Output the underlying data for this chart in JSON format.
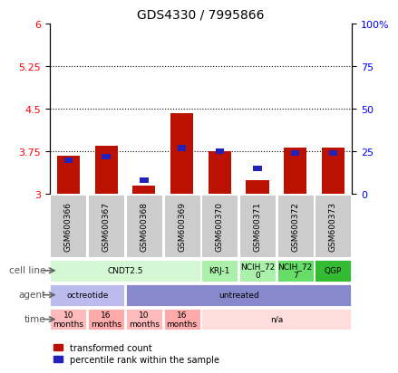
{
  "title": "GDS4330 / 7995866",
  "samples": [
    "GSM600366",
    "GSM600367",
    "GSM600368",
    "GSM600369",
    "GSM600370",
    "GSM600371",
    "GSM600372",
    "GSM600373"
  ],
  "red_values": [
    3.67,
    3.85,
    3.15,
    4.43,
    3.75,
    3.25,
    3.82,
    3.82
  ],
  "blue_values": [
    20,
    22,
    8,
    27,
    25,
    15,
    24,
    24
  ],
  "ylim_left": [
    3.0,
    6.0
  ],
  "ylim_right": [
    0,
    100
  ],
  "yticks_left": [
    3.0,
    3.75,
    4.5,
    5.25,
    6.0
  ],
  "yticks_left_labels": [
    "3",
    "3.75",
    "4.5",
    "5.25",
    "6"
  ],
  "yticks_right": [
    0,
    25,
    50,
    75,
    100
  ],
  "yticks_right_labels": [
    "0",
    "25",
    "50",
    "75",
    "100%"
  ],
  "cell_line_groups": [
    {
      "label": "CNDT2.5",
      "start": 0,
      "end": 4,
      "color": "#d4f7d4"
    },
    {
      "label": "KRJ-1",
      "start": 4,
      "end": 5,
      "color": "#aaf0aa"
    },
    {
      "label": "NCIH_72\n0",
      "start": 5,
      "end": 6,
      "color": "#aaf0aa"
    },
    {
      "label": "NCIH_72\n7",
      "start": 6,
      "end": 7,
      "color": "#66dd66"
    },
    {
      "label": "QGP",
      "start": 7,
      "end": 8,
      "color": "#33bb33"
    }
  ],
  "agent_groups": [
    {
      "label": "octreotide",
      "start": 0,
      "end": 2,
      "color": "#bbbbee"
    },
    {
      "label": "untreated",
      "start": 2,
      "end": 8,
      "color": "#8888cc"
    }
  ],
  "time_groups": [
    {
      "label": "10\nmonths",
      "start": 0,
      "end": 1,
      "color": "#ffbbbb"
    },
    {
      "label": "16\nmonths",
      "start": 1,
      "end": 2,
      "color": "#ffaaaa"
    },
    {
      "label": "10\nmonths",
      "start": 2,
      "end": 3,
      "color": "#ffbbbb"
    },
    {
      "label": "16\nmonths",
      "start": 3,
      "end": 4,
      "color": "#ffaaaa"
    },
    {
      "label": "n/a",
      "start": 4,
      "end": 8,
      "color": "#ffdddd"
    }
  ],
  "bar_bottom": 3.0,
  "red_color": "#bb1100",
  "blue_color": "#2222bb",
  "sample_box_color": "#cccccc",
  "plot_bg": "#ffffff",
  "legend_red": "transformed count",
  "legend_blue": "percentile rank within the sample"
}
